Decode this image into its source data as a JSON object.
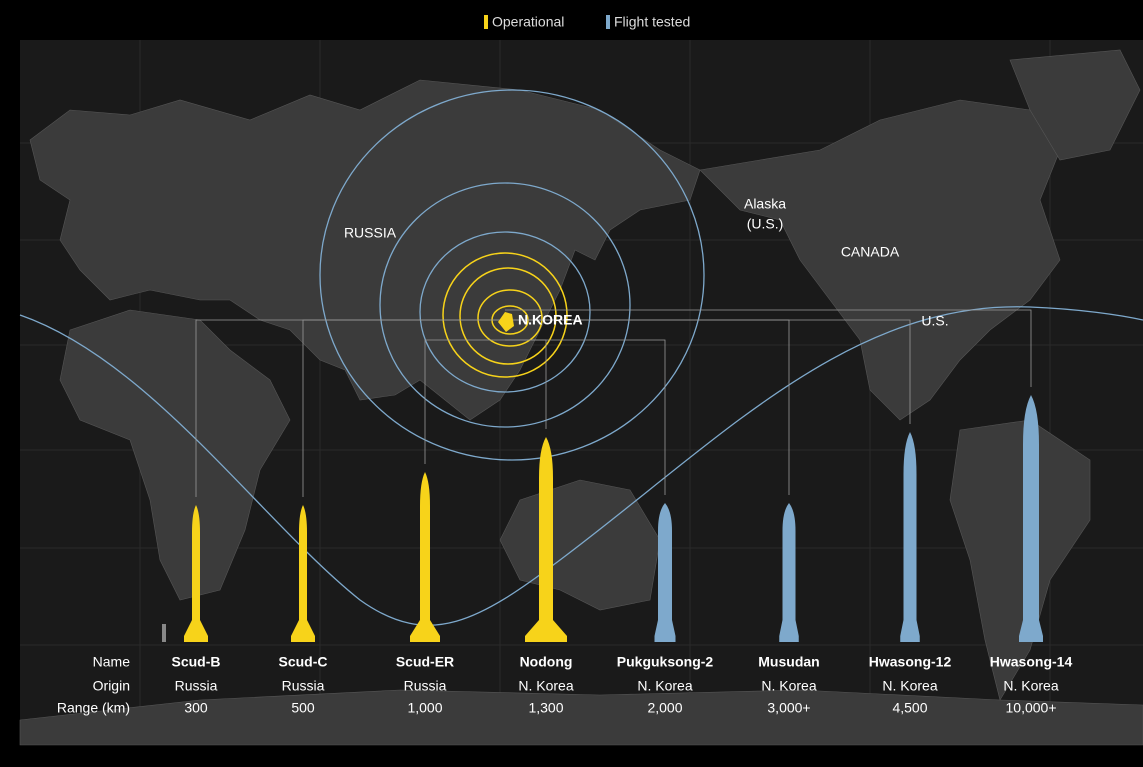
{
  "legend": [
    {
      "label": "Operational",
      "color": "#f7d31a"
    },
    {
      "label": "Flight tested",
      "color": "#7ea9cc"
    }
  ],
  "map_labels": [
    "RUSSIA",
    "Alaska",
    "(U.S.)",
    "CANADA",
    "U.S.",
    "N.KOREA"
  ],
  "row_headers": [
    "Name",
    "Origin",
    "Range (km)"
  ],
  "missiles": [
    {
      "name": "Scud-B",
      "origin": "Russia",
      "range": "300",
      "color": "#f7d31a"
    },
    {
      "name": "Scud-C",
      "origin": "Russia",
      "range": "500",
      "color": "#f7d31a"
    },
    {
      "name": "Scud-ER",
      "origin": "Russia",
      "range": "1,000",
      "color": "#f7d31a"
    },
    {
      "name": "Nodong",
      "origin": "N. Korea",
      "range": "1,300",
      "color": "#f7d31a"
    },
    {
      "name": "Pukguksong-2",
      "origin": "N. Korea",
      "range": "2,000",
      "color": "#7ea9cc"
    },
    {
      "name": "Musudan",
      "origin": "N. Korea",
      "range": "3,000+",
      "color": "#7ea9cc"
    },
    {
      "name": "Hwasong-12",
      "origin": "N. Korea",
      "range": "4,500",
      "color": "#7ea9cc"
    },
    {
      "name": "Hwasong-14",
      "origin": "N. Korea",
      "range": "10,000+",
      "color": "#7ea9cc"
    }
  ]
}
